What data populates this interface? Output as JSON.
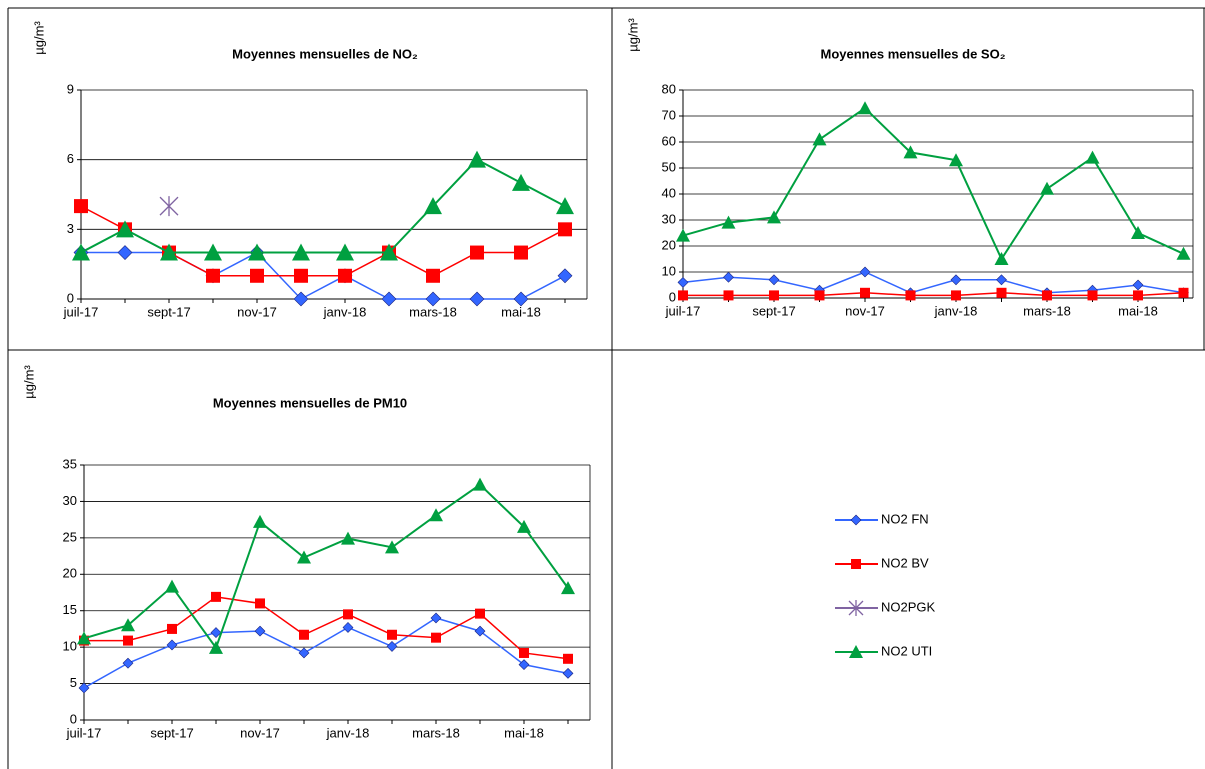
{
  "chart_data": [
    {
      "type": "line",
      "title": "Moyennes mensuelles de NO₂",
      "y_label": "µg/m³",
      "categories": [
        "juil-17",
        null,
        "sept-17",
        null,
        "nov-17",
        null,
        "janv-18",
        null,
        "mars-18",
        null,
        "mai-18",
        null
      ],
      "ylim": [
        0,
        9
      ],
      "yticks": [
        0,
        3,
        6,
        9
      ],
      "grid": true,
      "series": [
        {
          "name": "NO2 FN",
          "color": "#3366ff",
          "marker": "diamond",
          "values": [
            2,
            2,
            2,
            1,
            2,
            0,
            1,
            0,
            0,
            0,
            0,
            1
          ]
        },
        {
          "name": "NO2 BV",
          "color": "#ff0000",
          "marker": "square",
          "values": [
            4,
            3,
            2,
            1,
            1,
            1,
            1,
            2,
            1,
            2,
            2,
            3
          ]
        },
        {
          "name": "NO2PGK",
          "color": "#8064a2",
          "marker": "star",
          "values": [
            null,
            null,
            4,
            null,
            null,
            null,
            null,
            null,
            null,
            null,
            null,
            null
          ]
        },
        {
          "name": "NO2 UTI",
          "color": "#00a040",
          "marker": "triangle",
          "values": [
            2,
            3,
            2,
            2,
            2,
            2,
            2,
            2,
            4,
            6,
            5,
            4
          ]
        }
      ]
    },
    {
      "type": "line",
      "title": "Moyennes mensuelles de SO₂",
      "y_label": "µg/m³",
      "categories": [
        "juil-17",
        null,
        "sept-17",
        null,
        "nov-17",
        null,
        "janv-18",
        null,
        "mars-18",
        null,
        "mai-18",
        null
      ],
      "ylim": [
        0,
        80
      ],
      "yticks": [
        0,
        10,
        20,
        30,
        40,
        50,
        60,
        70,
        80
      ],
      "grid": true,
      "series": [
        {
          "color": "#3366ff",
          "marker": "diamond",
          "values": [
            6,
            8,
            7,
            3,
            10,
            2,
            7,
            7,
            2,
            3,
            5,
            2
          ]
        },
        {
          "color": "#ff0000",
          "marker": "square",
          "values": [
            1,
            1,
            1,
            1,
            2,
            1,
            1,
            2,
            1,
            1,
            1,
            2
          ]
        },
        {
          "color": "#00a040",
          "marker": "triangle",
          "values": [
            24,
            29,
            31,
            61,
            73,
            56,
            53,
            15,
            42,
            54,
            25,
            17
          ]
        }
      ]
    },
    {
      "type": "line",
      "title": "Moyennes mensuelles de PM10",
      "y_label": "µg/m³",
      "categories": [
        "juil-17",
        null,
        "sept-17",
        null,
        "nov-17",
        null,
        "janv-18",
        null,
        "mars-18",
        null,
        "mai-18",
        null
      ],
      "ylim": [
        0,
        35
      ],
      "yticks": [
        0,
        5,
        10,
        15,
        20,
        25,
        30,
        35
      ],
      "grid": true,
      "series": [
        {
          "color": "#3366ff",
          "marker": "diamond",
          "values": [
            4.4,
            7.8,
            10.3,
            12,
            12.2,
            9.2,
            12.7,
            10.1,
            14,
            12.2,
            7.6,
            6.4
          ]
        },
        {
          "color": "#ff0000",
          "marker": "square",
          "values": [
            10.9,
            10.9,
            12.5,
            16.9,
            16,
            11.7,
            14.5,
            11.7,
            11.3,
            14.6,
            9.2,
            8.4
          ]
        },
        {
          "color": "#00a040",
          "marker": "triangle",
          "values": [
            11.2,
            13,
            18.3,
            9.9,
            27.2,
            22.3,
            24.9,
            23.7,
            28.1,
            32.3,
            26.5,
            18.1
          ]
        }
      ]
    }
  ]
}
